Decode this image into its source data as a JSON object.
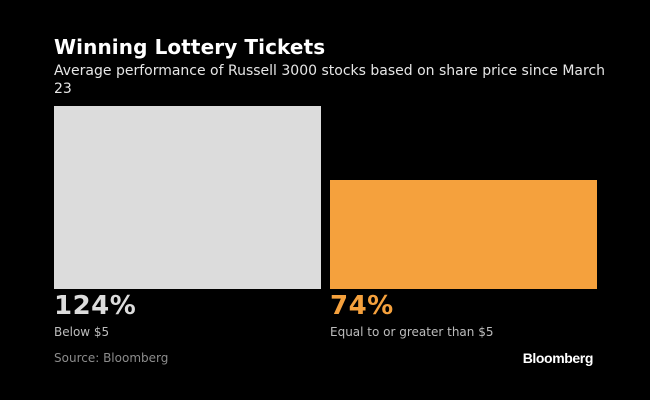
{
  "chart_data": {
    "type": "bar",
    "title": "Winning Lottery Tickets",
    "subtitle": "Average performance of Russell 3000 stocks based on share price since March 23",
    "categories": [
      "Below $5",
      "Equal to or greater than $5"
    ],
    "values": [
      124,
      74
    ],
    "value_labels": [
      "124%",
      "74%"
    ],
    "colors": [
      "#dcdcdc",
      "#f5a13d"
    ],
    "label_colors": [
      "#dcdcdc",
      "#f5a13d"
    ],
    "unit": "%",
    "ylim": [
      0,
      124
    ],
    "grid": false,
    "source": "Source: Bloomberg",
    "brand": "Bloomberg"
  }
}
